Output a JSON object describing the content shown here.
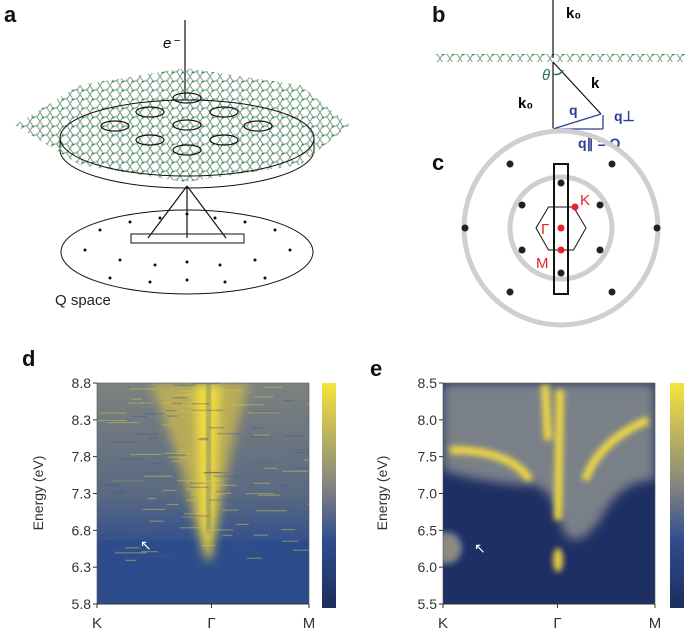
{
  "panels": {
    "a": "a",
    "b": "b",
    "c": "c",
    "d": "d",
    "e": "e"
  },
  "panel_a": {
    "electron_label": "e⁻",
    "q_space_label": "Q space"
  },
  "panel_b": {
    "k0_top": "k₀",
    "k0_side": "k₀",
    "theta": "θ",
    "k": "k",
    "q": "q",
    "q_perp": "q⊥",
    "q_parallel": "q∥ = Q"
  },
  "panel_c": {
    "K": "K",
    "Gamma": "Γ",
    "M": "M",
    "highlight_color": "#e8202a",
    "ring_color": "#c8c8c8"
  },
  "colormap": {
    "low": "#1d2d5e",
    "mid": "#8a8a80",
    "high": "#f4e23a"
  },
  "chart_data": [
    {
      "type": "heatmap",
      "panel": "d",
      "ylabel": "Energy (eV)",
      "xticks": [
        "K",
        "Γ",
        "M"
      ],
      "yticks": [
        "5.8",
        "6.3",
        "6.8",
        "7.3",
        "7.8",
        "8.3",
        "8.8"
      ],
      "ylim": [
        5.8,
        8.8
      ],
      "annotation": "arrow near K at ~6.6 eV"
    },
    {
      "type": "heatmap",
      "panel": "e",
      "ylabel": "Energy (eV)",
      "xticks": [
        "K",
        "Γ",
        "M"
      ],
      "yticks": [
        "5.5",
        "6.0",
        "6.5",
        "7.0",
        "7.5",
        "8.0",
        "8.5"
      ],
      "ylim": [
        5.5,
        8.5
      ],
      "annotation": "arrow near K at ~6.4 eV"
    }
  ]
}
